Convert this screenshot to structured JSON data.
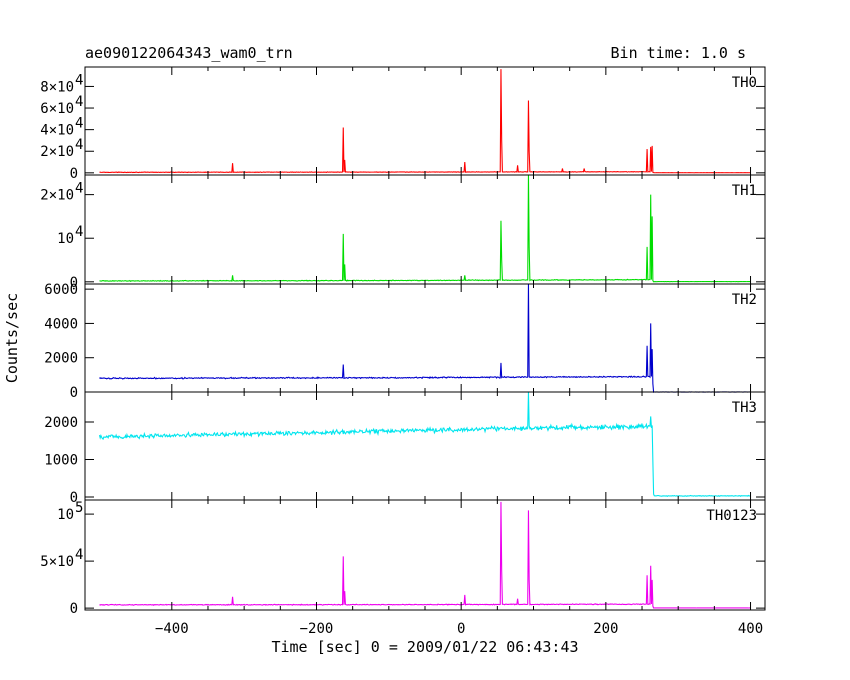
{
  "header": {
    "title": "ae090122064343_wam0_trn",
    "bin_time": "Bin time: 1.0 s"
  },
  "axes": {
    "xlabel": "Time [sec] 0 = 2009/01/22 06:43:43",
    "ylabel": "Counts/sec"
  },
  "chart_data": {
    "type": "line",
    "title": "ae090122064343_wam0_trn",
    "xlabel": "Time [sec] 0 = 2009/01/22 06:43:43",
    "ylabel": "Counts/sec",
    "xlim": [
      -520,
      420
    ],
    "x_ticks": [
      {
        "v": -400,
        "label": "−400"
      },
      {
        "v": -200,
        "label": "−200"
      },
      {
        "v": 0,
        "label": "0"
      },
      {
        "v": 200,
        "label": "200"
      },
      {
        "v": 400,
        "label": "400"
      }
    ],
    "x_data_range": [
      -500,
      400
    ],
    "bin_time": "Bin time: 1.0 s",
    "panels": [
      {
        "name": "TH0",
        "color": "#ff0000",
        "ylim": [
          -2000,
          98000
        ],
        "ticks": [
          {
            "v": 0,
            "mant": "0",
            "exp": ""
          },
          {
            "v": 20000,
            "mant": "2×10",
            "exp": "4"
          },
          {
            "v": 40000,
            "mant": "4×10",
            "exp": "4"
          },
          {
            "v": 60000,
            "mant": "6×10",
            "exp": "4"
          },
          {
            "v": 80000,
            "mant": "8×10",
            "exp": "4"
          }
        ],
        "baseline": [
          [
            -500,
            500
          ],
          [
            -100,
            700
          ],
          [
            100,
            900
          ],
          [
            264,
            1000
          ],
          [
            266,
            100
          ],
          [
            400,
            100
          ]
        ],
        "noise": 200,
        "spikes": [
          [
            -316,
            9000
          ],
          [
            -163,
            42000
          ],
          [
            -161,
            12000
          ],
          [
            5,
            10000
          ],
          [
            55,
            96000
          ],
          [
            56,
            30000
          ],
          [
            93,
            67000
          ],
          [
            94,
            20000
          ],
          [
            78,
            7000
          ],
          [
            140,
            4000
          ],
          [
            170,
            4000
          ],
          [
            257,
            22000
          ],
          [
            262,
            24000
          ],
          [
            264,
            25000
          ]
        ]
      },
      {
        "name": "TH1",
        "color": "#00dd00",
        "ylim": [
          -500,
          24500
        ],
        "ticks": [
          {
            "v": 0,
            "mant": "0",
            "exp": ""
          },
          {
            "v": 10000,
            "mant": "10",
            "exp": "4"
          },
          {
            "v": 20000,
            "mant": "2×10",
            "exp": "4"
          }
        ],
        "baseline": [
          [
            -500,
            200
          ],
          [
            -100,
            300
          ],
          [
            100,
            400
          ],
          [
            264,
            500
          ],
          [
            266,
            50
          ],
          [
            400,
            50
          ]
        ],
        "noise": 80,
        "spikes": [
          [
            -316,
            1500
          ],
          [
            -163,
            11000
          ],
          [
            -161,
            4000
          ],
          [
            5,
            1500
          ],
          [
            55,
            14000
          ],
          [
            56,
            5000
          ],
          [
            93,
            24500
          ],
          [
            94,
            8000
          ],
          [
            257,
            8000
          ],
          [
            262,
            20000
          ],
          [
            264,
            15000
          ]
        ]
      },
      {
        "name": "TH2",
        "color": "#0000cc",
        "ylim": [
          0,
          6300
        ],
        "ticks": [
          {
            "v": 0,
            "mant": "0",
            "exp": ""
          },
          {
            "v": 2000,
            "mant": "2000",
            "exp": ""
          },
          {
            "v": 4000,
            "mant": "4000",
            "exp": ""
          },
          {
            "v": 6000,
            "mant": "6000",
            "exp": ""
          }
        ],
        "baseline": [
          [
            -500,
            800
          ],
          [
            -100,
            830
          ],
          [
            100,
            870
          ],
          [
            264,
            900
          ],
          [
            266,
            0
          ],
          [
            400,
            0
          ]
        ],
        "noise": 35,
        "spikes": [
          [
            -163,
            1600
          ],
          [
            55,
            1700
          ],
          [
            93,
            6300
          ],
          [
            257,
            2700
          ],
          [
            262,
            4000
          ],
          [
            264,
            2500
          ]
        ]
      },
      {
        "name": "TH3",
        "color": "#00e5ee",
        "ylim": [
          -80,
          2800
        ],
        "ticks": [
          {
            "v": 0,
            "mant": "0",
            "exp": ""
          },
          {
            "v": 1000,
            "mant": "1000",
            "exp": ""
          },
          {
            "v": 2000,
            "mant": "2000",
            "exp": ""
          }
        ],
        "baseline": [
          [
            -500,
            1600
          ],
          [
            -100,
            1760
          ],
          [
            100,
            1840
          ],
          [
            264,
            1880
          ],
          [
            266,
            30
          ],
          [
            400,
            30
          ]
        ],
        "noise": 60,
        "spikes": [
          [
            93,
            2800
          ],
          [
            262,
            2150
          ]
        ]
      },
      {
        "name": "TH0123",
        "color": "#ee00ee",
        "ylim": [
          -2000,
          115000
        ],
        "ticks": [
          {
            "v": 0,
            "mant": "0",
            "exp": ""
          },
          {
            "v": 50000,
            "mant": "5×10",
            "exp": "4"
          },
          {
            "v": 100000,
            "mant": "10",
            "exp": "5"
          }
        ],
        "baseline": [
          [
            -500,
            3500
          ],
          [
            -100,
            3700
          ],
          [
            100,
            4000
          ],
          [
            264,
            4200
          ],
          [
            266,
            200
          ],
          [
            400,
            200
          ]
        ],
        "noise": 400,
        "spikes": [
          [
            -316,
            12000
          ],
          [
            -163,
            55000
          ],
          [
            -161,
            18000
          ],
          [
            5,
            14000
          ],
          [
            55,
            113000
          ],
          [
            56,
            40000
          ],
          [
            93,
            104000
          ],
          [
            94,
            30000
          ],
          [
            78,
            10000
          ],
          [
            257,
            35000
          ],
          [
            262,
            45000
          ],
          [
            264,
            30000
          ]
        ]
      }
    ]
  }
}
